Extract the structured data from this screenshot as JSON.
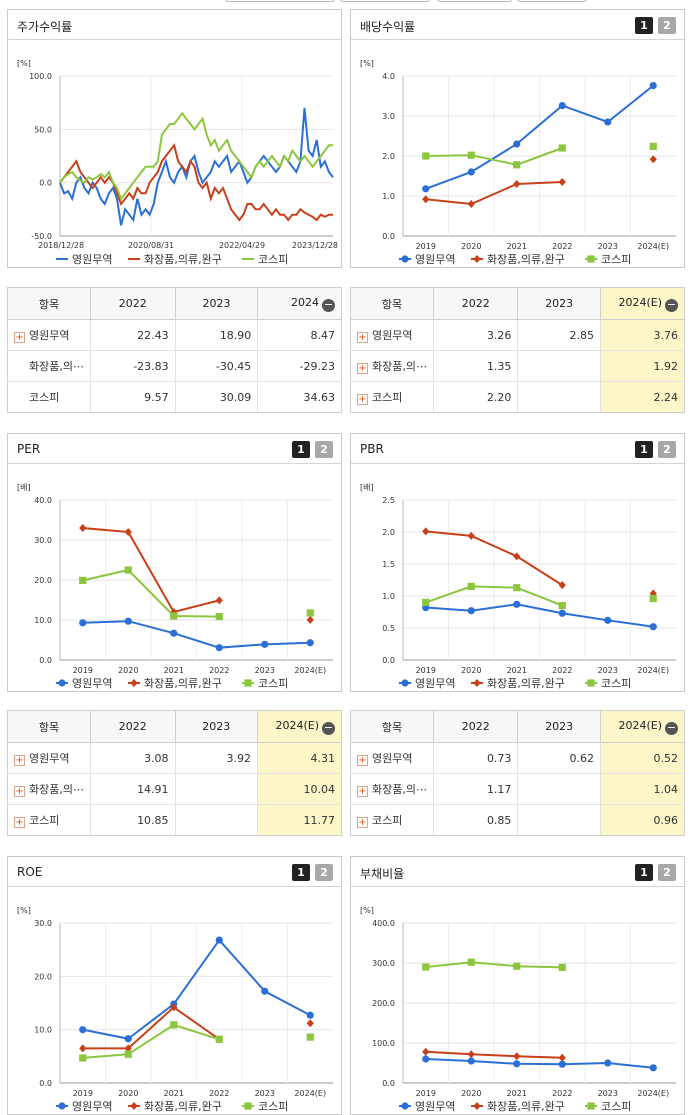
{
  "colors": {
    "company": "#2b6fd6",
    "industry": "#c8401a",
    "kospi": "#8cc63f"
  },
  "pager": {
    "p1": "1",
    "p2": "2"
  },
  "legend": {
    "company": "영원무역",
    "industry": "화장품,의류,완구",
    "kospi": "코스피"
  },
  "charts": {
    "price": {
      "title": "주가수익률",
      "unit": "[%]",
      "type": "line",
      "yticks": [
        "100.0",
        "50.0",
        "0.0",
        "-50.0"
      ],
      "ylim": [
        -50,
        100
      ],
      "xticks": [
        "2018/12/28",
        "2020/08/31",
        "2022/04/29",
        "2023/12/28"
      ],
      "series": [
        {
          "name": "영원무역",
          "values": [
            0,
            -10,
            -8,
            -15,
            0,
            5,
            -5,
            -10,
            0,
            -5,
            -15,
            -20,
            -10,
            -5,
            -15,
            -40,
            -25,
            -30,
            -35,
            -15,
            -30,
            -25,
            -30,
            -20,
            0,
            10,
            20,
            5,
            0,
            10,
            15,
            5,
            20,
            25,
            10,
            0,
            5,
            10,
            20,
            15,
            20,
            25,
            10,
            15,
            20,
            10,
            0,
            5,
            15,
            20,
            25,
            20,
            15,
            10,
            15,
            25,
            20,
            15,
            10,
            20,
            70,
            30,
            25,
            40,
            15,
            20,
            10,
            5
          ]
        },
        {
          "name": "화장품,의류,완구",
          "values": [
            0,
            5,
            10,
            15,
            20,
            10,
            5,
            0,
            -5,
            0,
            5,
            0,
            5,
            0,
            -10,
            -20,
            -15,
            -10,
            -15,
            -5,
            -10,
            -10,
            0,
            5,
            10,
            20,
            25,
            30,
            35,
            20,
            15,
            10,
            20,
            15,
            0,
            -5,
            0,
            -15,
            -5,
            -10,
            -5,
            -15,
            -25,
            -30,
            -35,
            -30,
            -20,
            -20,
            -25,
            -25,
            -20,
            -25,
            -30,
            -25,
            -30,
            -30,
            -35,
            -30,
            -30,
            -25,
            -28,
            -30,
            -32,
            -35,
            -30,
            -32,
            -30,
            -30
          ]
        },
        {
          "name": "코스피",
          "values": [
            0,
            5,
            8,
            10,
            5,
            2,
            0,
            5,
            3,
            5,
            8,
            5,
            10,
            0,
            -5,
            -15,
            -10,
            -5,
            0,
            5,
            10,
            15,
            15,
            15,
            20,
            45,
            50,
            55,
            55,
            60,
            65,
            60,
            55,
            50,
            55,
            60,
            45,
            35,
            40,
            30,
            35,
            40,
            30,
            25,
            20,
            15,
            10,
            5,
            15,
            20,
            15,
            20,
            25,
            20,
            15,
            25,
            20,
            30,
            25,
            20,
            25,
            20,
            15,
            20,
            25,
            30,
            35,
            35
          ]
        }
      ]
    },
    "dividend": {
      "title": "배당수익률",
      "unit": "[%]",
      "type": "line",
      "yticks": [
        "4.0",
        "3.0",
        "2.0",
        "1.0",
        "0.0"
      ],
      "ylim": [
        0,
        4
      ],
      "categories": [
        "2019",
        "2020",
        "2021",
        "2022",
        "2023",
        "2024(E)"
      ],
      "series": [
        {
          "name": "영원무역",
          "values": [
            1.18,
            1.6,
            2.3,
            3.26,
            2.85,
            3.76
          ]
        },
        {
          "name": "화장품,의류,완구",
          "values": [
            0.92,
            0.8,
            1.3,
            1.35,
            null,
            1.92
          ]
        },
        {
          "name": "코스피",
          "values": [
            2.0,
            2.02,
            1.78,
            2.2,
            null,
            2.24
          ]
        }
      ]
    },
    "per": {
      "title": "PER",
      "unit": "[배]",
      "type": "line",
      "yticks": [
        "40.0",
        "30.0",
        "20.0",
        "10.0",
        "0.0"
      ],
      "ylim": [
        0,
        40
      ],
      "categories": [
        "2019",
        "2020",
        "2021",
        "2022",
        "2023",
        "2024(E)"
      ],
      "series": [
        {
          "name": "영원무역",
          "values": [
            9.3,
            9.7,
            6.7,
            3.08,
            3.92,
            4.31
          ]
        },
        {
          "name": "화장품,의류,완구",
          "values": [
            33.0,
            32.0,
            12.0,
            14.91,
            null,
            10.04
          ]
        },
        {
          "name": "코스피",
          "values": [
            19.9,
            22.5,
            11.0,
            10.85,
            null,
            11.77
          ]
        }
      ]
    },
    "pbr": {
      "title": "PBR",
      "unit": "[배]",
      "type": "line",
      "yticks": [
        "2.5",
        "2.0",
        "1.5",
        "1.0",
        "0.5",
        "0.0"
      ],
      "ylim": [
        0,
        2.5
      ],
      "categories": [
        "2019",
        "2020",
        "2021",
        "2022",
        "2023",
        "2024(E)"
      ],
      "series": [
        {
          "name": "영원무역",
          "values": [
            0.82,
            0.77,
            0.87,
            0.73,
            0.62,
            0.52
          ]
        },
        {
          "name": "화장품,의류,완구",
          "values": [
            2.01,
            1.94,
            1.62,
            1.17,
            null,
            1.04
          ]
        },
        {
          "name": "코스피",
          "values": [
            0.9,
            1.15,
            1.13,
            0.85,
            null,
            0.96
          ]
        }
      ]
    },
    "roe": {
      "title": "ROE",
      "unit": "[%]",
      "type": "line",
      "yticks": [
        "30.0",
        "20.0",
        "10.0",
        "0.0"
      ],
      "ylim": [
        0,
        30
      ],
      "categories": [
        "2019",
        "2020",
        "2021",
        "2022",
        "2023",
        "2024(E)"
      ],
      "series": [
        {
          "name": "영원무역",
          "values": [
            10.0,
            8.3,
            14.8,
            26.8,
            17.2,
            12.7
          ]
        },
        {
          "name": "화장품,의류,완구",
          "values": [
            6.5,
            6.5,
            14.2,
            8.2,
            null,
            11.2
          ]
        },
        {
          "name": "코스피",
          "values": [
            4.7,
            5.4,
            10.9,
            8.2,
            null,
            8.6
          ]
        }
      ]
    },
    "debt": {
      "title": "부채비율",
      "unit": "[%]",
      "type": "line",
      "yticks": [
        "400.0",
        "300.0",
        "200.0",
        "100.0",
        "0.0"
      ],
      "ylim": [
        0,
        400
      ],
      "categories": [
        "2019",
        "2020",
        "2021",
        "2022",
        "2023",
        "2024(E)"
      ],
      "series": [
        {
          "name": "영원무역",
          "values": [
            60,
            55,
            48,
            47,
            50,
            38
          ]
        },
        {
          "name": "화장품,의류,완구",
          "values": [
            78,
            72,
            67,
            63,
            null,
            null
          ]
        },
        {
          "name": "코스피",
          "values": [
            290,
            302,
            292,
            289,
            null,
            null
          ]
        }
      ]
    }
  },
  "tables": {
    "price": {
      "header": {
        "item": "항목",
        "c1": "2022",
        "c2": "2023",
        "c3": "2024"
      },
      "rows": [
        {
          "name": "영원무역",
          "c1": "22.43",
          "c2": "18.90",
          "c3": "8.47"
        },
        {
          "name": "화장품,의⋯",
          "c1": "-23.83",
          "c2": "-30.45",
          "c3": "-29.23"
        },
        {
          "name": "코스피",
          "c1": "9.57",
          "c2": "30.09",
          "c3": "34.63"
        }
      ]
    },
    "dividend": {
      "header": {
        "item": "항목",
        "c1": "2022",
        "c2": "2023",
        "c3": "2024(E)"
      },
      "rows": [
        {
          "name": "영원무역",
          "c1": "3.26",
          "c2": "2.85",
          "c3": "3.76"
        },
        {
          "name": "화장품,의⋯",
          "c1": "1.35",
          "c2": "",
          "c3": "1.92"
        },
        {
          "name": "코스피",
          "c1": "2.20",
          "c2": "",
          "c3": "2.24"
        }
      ]
    },
    "per": {
      "header": {
        "item": "항목",
        "c1": "2022",
        "c2": "2023",
        "c3": "2024(E)"
      },
      "rows": [
        {
          "name": "영원무역",
          "c1": "3.08",
          "c2": "3.92",
          "c3": "4.31"
        },
        {
          "name": "화장품,의⋯",
          "c1": "14.91",
          "c2": "",
          "c3": "10.04"
        },
        {
          "name": "코스피",
          "c1": "10.85",
          "c2": "",
          "c3": "11.77"
        }
      ]
    },
    "pbr": {
      "header": {
        "item": "항목",
        "c1": "2022",
        "c2": "2023",
        "c3": "2024(E)"
      },
      "rows": [
        {
          "name": "영원무역",
          "c1": "0.73",
          "c2": "0.62",
          "c3": "0.52"
        },
        {
          "name": "화장품,의⋯",
          "c1": "1.17",
          "c2": "",
          "c3": "1.04"
        },
        {
          "name": "코스피",
          "c1": "0.85",
          "c2": "",
          "c3": "0.96"
        }
      ]
    }
  }
}
